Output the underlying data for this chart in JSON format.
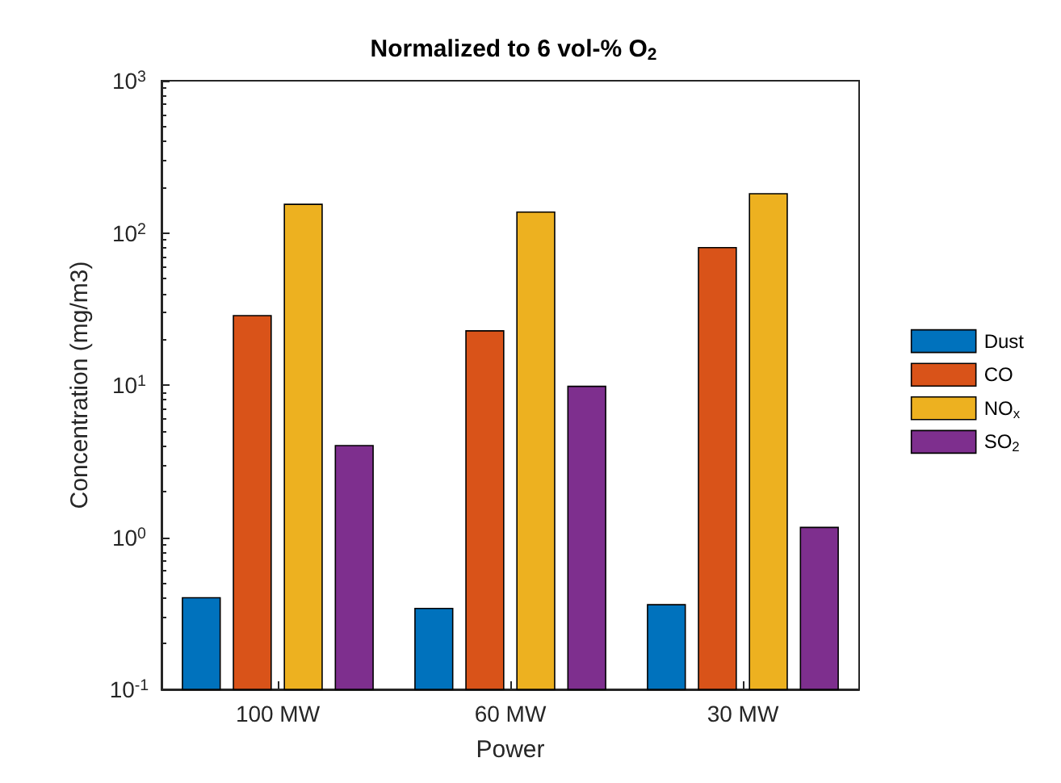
{
  "chart_data": {
    "type": "bar",
    "title": "Normalized to 6 vol-% O$_{2}$",
    "xlabel": "Power",
    "ylabel": "Concentration (mg/m3)",
    "categories": [
      "100 MW",
      "60 MW",
      "30 MW"
    ],
    "series": [
      {
        "name": "Dust",
        "color": "#0072bd",
        "values": [
          0.4,
          0.34,
          0.36
        ]
      },
      {
        "name": "CO",
        "color": "#d95319",
        "values": [
          28.6,
          22.7,
          80
        ]
      },
      {
        "name": "NO$_{x}$",
        "color": "#edb120",
        "values": [
          154,
          137,
          181
        ]
      },
      {
        "name": "SO$_{2}$",
        "color": "#7e2f8e",
        "values": [
          4.0,
          9.8,
          1.16
        ]
      }
    ],
    "log": "y",
    "ylim": [
      0.1,
      1000
    ],
    "yticks": [
      {
        "value": 0.1,
        "label": "10$^{-1}$"
      },
      {
        "value": 1,
        "label": "10$^{0}$"
      },
      {
        "value": 10,
        "label": "10$^{1}$"
      },
      {
        "value": 100,
        "label": "10$^{2}$"
      },
      {
        "value": 1000,
        "label": "10$^{3}$"
      }
    ],
    "grid": false,
    "legend": "right"
  }
}
